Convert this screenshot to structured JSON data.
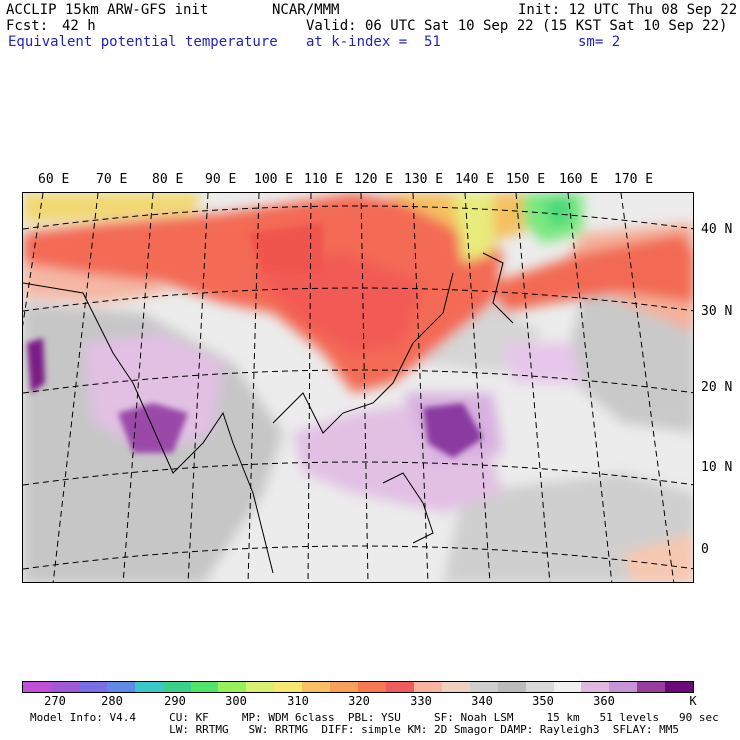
{
  "header": {
    "model": "ACCLIP 15km ARW-GFS init",
    "center": "NCAR/MMM",
    "init": "Init: 12 UTC Thu 08 Sep 22",
    "fcst_label": "Fcst:",
    "fcst_value": "42 h",
    "valid": "Valid: 06 UTC Sat 10 Sep 22 (15 KST Sat 10 Sep 22)",
    "field": "Equivalent potential temperature",
    "level": "at k-index =  51",
    "smoothing": "sm= 2"
  },
  "lon_labels": [
    "60 E",
    "70 E",
    "80 E",
    "90 E",
    "100 E",
    "110 E",
    "120 E",
    "130 E",
    "140 E",
    "150 E",
    "160 E",
    "170 E"
  ],
  "lat_labels": [
    "40 N",
    "30 N",
    "20 N",
    "10 N",
    "0"
  ],
  "colorbar": {
    "unit": "K",
    "tick_labels": [
      "270",
      "280",
      "290",
      "300",
      "310",
      "320",
      "330",
      "340",
      "350",
      "360"
    ],
    "colors": [
      "#c050d8",
      "#a05ad8",
      "#7a6ee6",
      "#5f8ae8",
      "#38c8c8",
      "#3ad08a",
      "#50e468",
      "#98f058",
      "#d8f070",
      "#f8e870",
      "#f8c060",
      "#f8a058",
      "#f87850",
      "#f05c5a",
      "#f8b4a0",
      "#f0d0c0",
      "#cfcfcf",
      "#bcbcbc",
      "#d8d8d8",
      "#f0f0f0",
      "#e0b8e0",
      "#c894d8",
      "#983ca0",
      "#6a0a78"
    ]
  },
  "model_info": {
    "line1": "Model Info: V4.4     CU: KF     MP: WDM 6class  PBL: YSU     SF: Noah LSM     15 km   51 levels   90 sec",
    "line2": "                     LW: RRTMG   SW: RRTMG  DIFF: simple KM: 2D Smagor DAMP: Rayleigh3  SFLAY: MM5"
  }
}
